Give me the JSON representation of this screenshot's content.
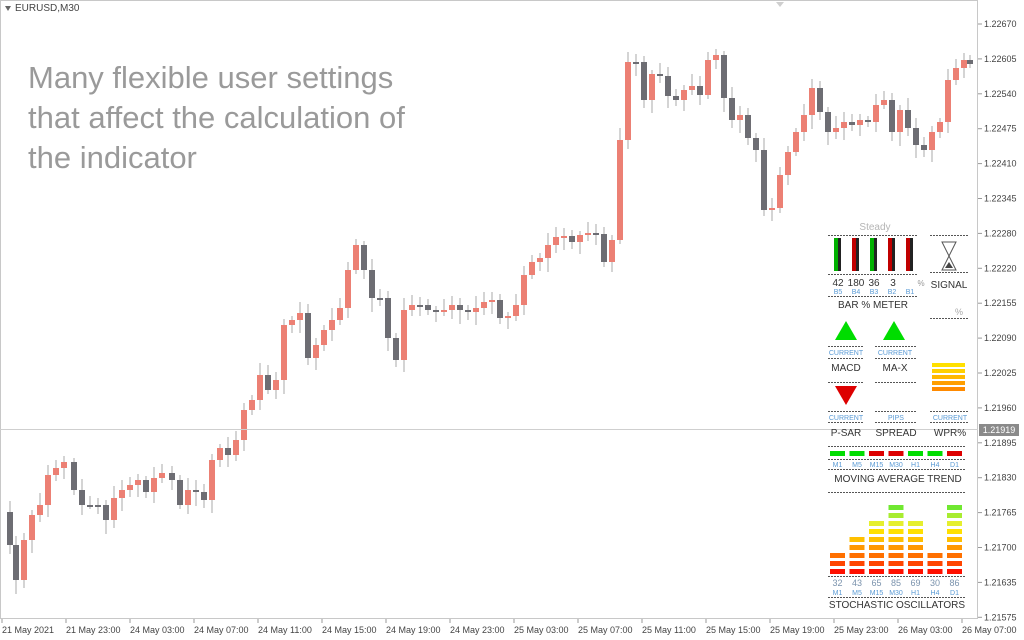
{
  "symbol": "EURUSD,M30",
  "overlay_text": "Many flexible user settings that affect the calculation of the indicator",
  "current_price": "1.21919",
  "price_labels": [
    "1.22670",
    "1.22605",
    "1.22540",
    "1.22475",
    "1.22410",
    "1.22345",
    "1.22280",
    "1.22220",
    "1.22155",
    "1.22090",
    "1.22025",
    "1.21960",
    "1.21895",
    "1.21830",
    "1.21765",
    "1.21700",
    "1.21635",
    "1.21575"
  ],
  "time_labels": [
    "21 May 2021",
    "21 May 23:00",
    "24 May 03:00",
    "24 May 07:00",
    "24 May 11:00",
    "24 May 15:00",
    "24 May 19:00",
    "24 May 23:00",
    "25 May 03:00",
    "25 May 07:00",
    "25 May 11:00",
    "25 May 15:00",
    "25 May 19:00",
    "25 May 23:00",
    "26 May 03:00",
    "26 May 07:00"
  ],
  "colors": {
    "bull": "#ec8074",
    "bear": "#6d6d73",
    "axis_text": "#444444",
    "green": "#00dd00",
    "red": "#dd0000",
    "label_blue": "#5b9bd5"
  },
  "panel": {
    "steady_label": "Steady",
    "bar_meter": {
      "values": [
        "42",
        "180",
        "36",
        "3"
      ],
      "pct": "%",
      "bars": [
        "B5",
        "B4",
        "B3",
        "B2",
        "B1"
      ],
      "title": "BAR % METER"
    },
    "signal": {
      "title": "SIGNAL",
      "pct": "%",
      "icon": "hourglass-icon"
    },
    "macd": {
      "sub": "CURRENT",
      "title": "MACD",
      "direction": "up"
    },
    "ma_x": {
      "sub": "CURRENT",
      "title": "MA-X",
      "direction": "up"
    },
    "psar": {
      "sub": "CURRENT",
      "title": "P-SAR",
      "direction": "down"
    },
    "spread": {
      "sub": "PIPS",
      "title": "SPREAD"
    },
    "wpr": {
      "sub": "CURRENT",
      "title": "WPR%"
    },
    "ma_trend": {
      "title": "MOVING AVERAGE TREND",
      "timeframes": [
        "M1",
        "M5",
        "M15",
        "M30",
        "H1",
        "H4",
        "D1"
      ],
      "states": [
        "green",
        "green",
        "red",
        "red",
        "green",
        "green",
        "red"
      ]
    },
    "stochastic": {
      "title": "STOCHASTIC OSCILLATORS",
      "values": [
        "32",
        "43",
        "65",
        "85",
        "69",
        "30",
        "86"
      ],
      "timeframes": [
        "M1",
        "M5",
        "M15",
        "M30",
        "H1",
        "H4",
        "D1"
      ]
    }
  }
}
